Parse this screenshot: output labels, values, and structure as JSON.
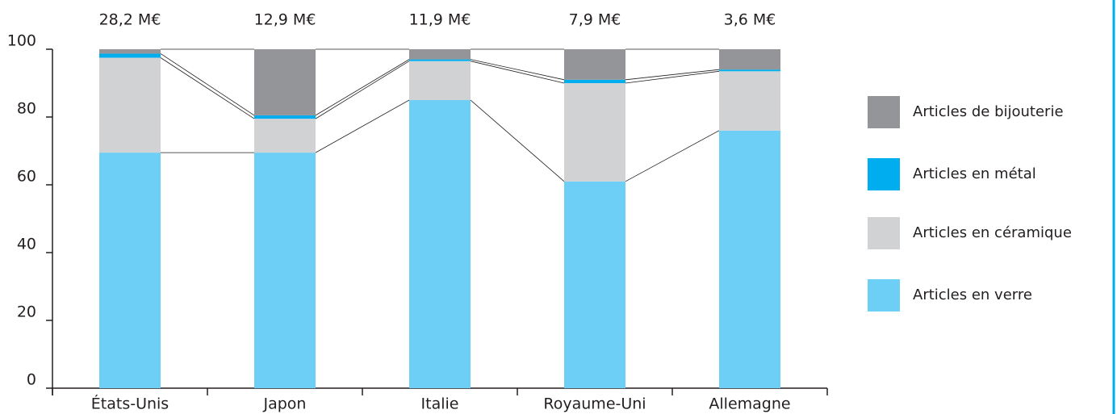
{
  "chart_data": {
    "type": "stacked_bar",
    "categories": [
      "États-Unis",
      "Japon",
      "Italie",
      "Royaume-Uni",
      "Allemagne"
    ],
    "annotations": [
      "28,2 M€",
      "12,9 M€",
      "11,9 M€",
      "7,9 M€",
      "3,6 M€"
    ],
    "series": [
      {
        "name": "Articles en verre",
        "color": "#6dcff6",
        "values": [
          69.5,
          69.5,
          85,
          61,
          76
        ]
      },
      {
        "name": "Articles en céramique",
        "color": "#d1d2d4",
        "values": [
          28,
          10,
          11.5,
          29,
          17.5
        ]
      },
      {
        "name": "Articles en métal",
        "color": "#00aeef",
        "values": [
          1.2,
          1,
          0.5,
          1,
          0.5
        ]
      },
      {
        "name": "Articles de bijouterie",
        "color": "#939598",
        "values": [
          1.3,
          19.5,
          3,
          9,
          6
        ]
      }
    ],
    "ylim": [
      0,
      100
    ],
    "yticks": [
      0,
      20,
      40,
      60,
      80,
      100
    ],
    "legend": "right"
  }
}
